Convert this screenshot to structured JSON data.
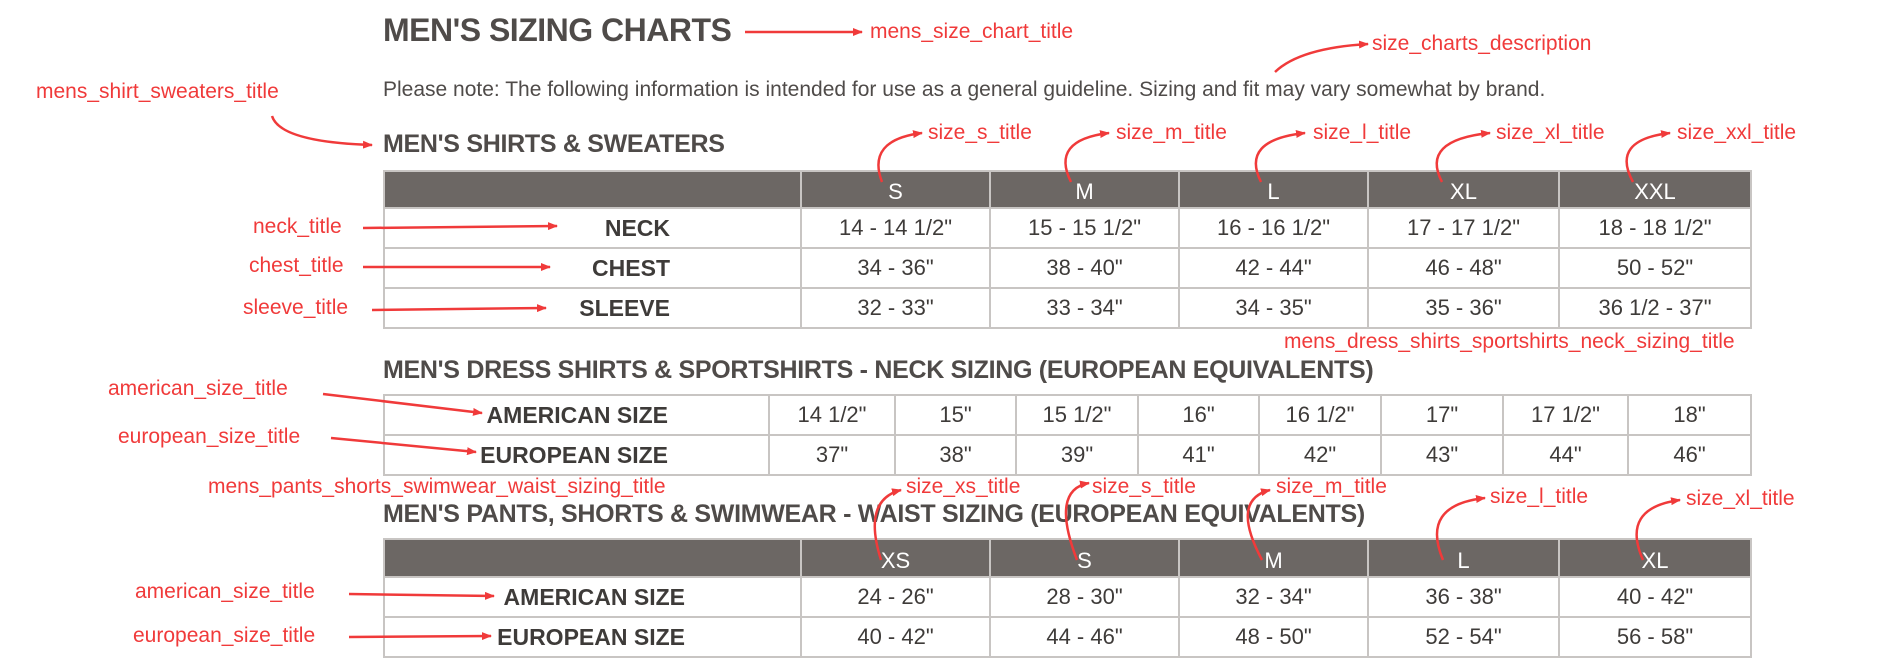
{
  "header": {
    "title": "MEN'S SIZING CHARTS",
    "description": "Please note: The following information is intended for use as a general guideline. Sizing and fit may vary somewhat by brand."
  },
  "shirts": {
    "title": "MEN'S SHIRTS & SWEATERS",
    "sizes": [
      "S",
      "M",
      "L",
      "XL",
      "XXL"
    ],
    "rows": [
      {
        "label": "NECK",
        "values": [
          "14 - 14 1/2\"",
          "15 - 15 1/2\"",
          "16 - 16 1/2\"",
          "17 - 17 1/2\"",
          "18 - 18 1/2\""
        ]
      },
      {
        "label": "CHEST",
        "values": [
          "34 - 36\"",
          "38 - 40\"",
          "42 - 44\"",
          "46 - 48\"",
          "50 - 52\""
        ]
      },
      {
        "label": "SLEEVE",
        "values": [
          "32 - 33\"",
          "33 - 34\"",
          "34 - 35\"",
          "35 - 36\"",
          "36 1/2 - 37\""
        ]
      }
    ]
  },
  "dress_shirts": {
    "title": "MEN'S DRESS SHIRTS & SPORTSHIRTS - NECK SIZING (EUROPEAN EQUIVALENTS)",
    "rows": [
      {
        "label": "AMERICAN SIZE",
        "values": [
          "14 1/2\"",
          "15\"",
          "15 1/2\"",
          "16\"",
          "16 1/2\"",
          "17\"",
          "17 1/2\"",
          "18\""
        ]
      },
      {
        "label": "EUROPEAN SIZE",
        "values": [
          "37\"",
          "38\"",
          "39\"",
          "41\"",
          "42\"",
          "43\"",
          "44\"",
          "46\""
        ]
      }
    ]
  },
  "pants": {
    "title": "MEN'S PANTS, SHORTS & SWIMWEAR - WAIST SIZING (EUROPEAN EQUIVALENTS)",
    "sizes": [
      "XS",
      "S",
      "M",
      "L",
      "XL"
    ],
    "rows": [
      {
        "label": "AMERICAN SIZE",
        "values": [
          "24 - 26\"",
          "28 - 30\"",
          "32 - 34\"",
          "36 - 38\"",
          "40 - 42\""
        ]
      },
      {
        "label": "EUROPEAN SIZE",
        "values": [
          "40 - 42\"",
          "44 - 46\"",
          "48 - 50\"",
          "52 - 54\"",
          "56 - 58\""
        ]
      }
    ]
  },
  "annotations": {
    "mens_size_chart_title": "mens_size_chart_title",
    "size_charts_description": "size_charts_description",
    "mens_shirt_sweaters_title": "mens_shirt_sweaters_title",
    "shirt_sizes": [
      "size_s_title",
      "size_m_title",
      "size_l_title",
      "size_xl_title",
      "size_xxl_title"
    ],
    "neck_title": "neck_title",
    "chest_title": "chest_title",
    "sleeve_title": "sleeve_title",
    "dress_title": "mens_dress_shirts_sportshirts_neck_sizing_title",
    "american_size_title": "american_size_title",
    "european_size_title": "european_size_title",
    "pants_title": "mens_pants_shorts_swimwear_waist_sizing_title",
    "pants_sizes": [
      "size_xs_title",
      "size_s_title",
      "size_m_title",
      "size_l_title",
      "size_xl_title"
    ],
    "american_size_title_2": "american_size_title",
    "european_size_title_2": "european_size_title"
  },
  "colors": {
    "header_bg": "#6c6764",
    "annotation": "#f03a3a",
    "border": "#c8c5c3"
  }
}
